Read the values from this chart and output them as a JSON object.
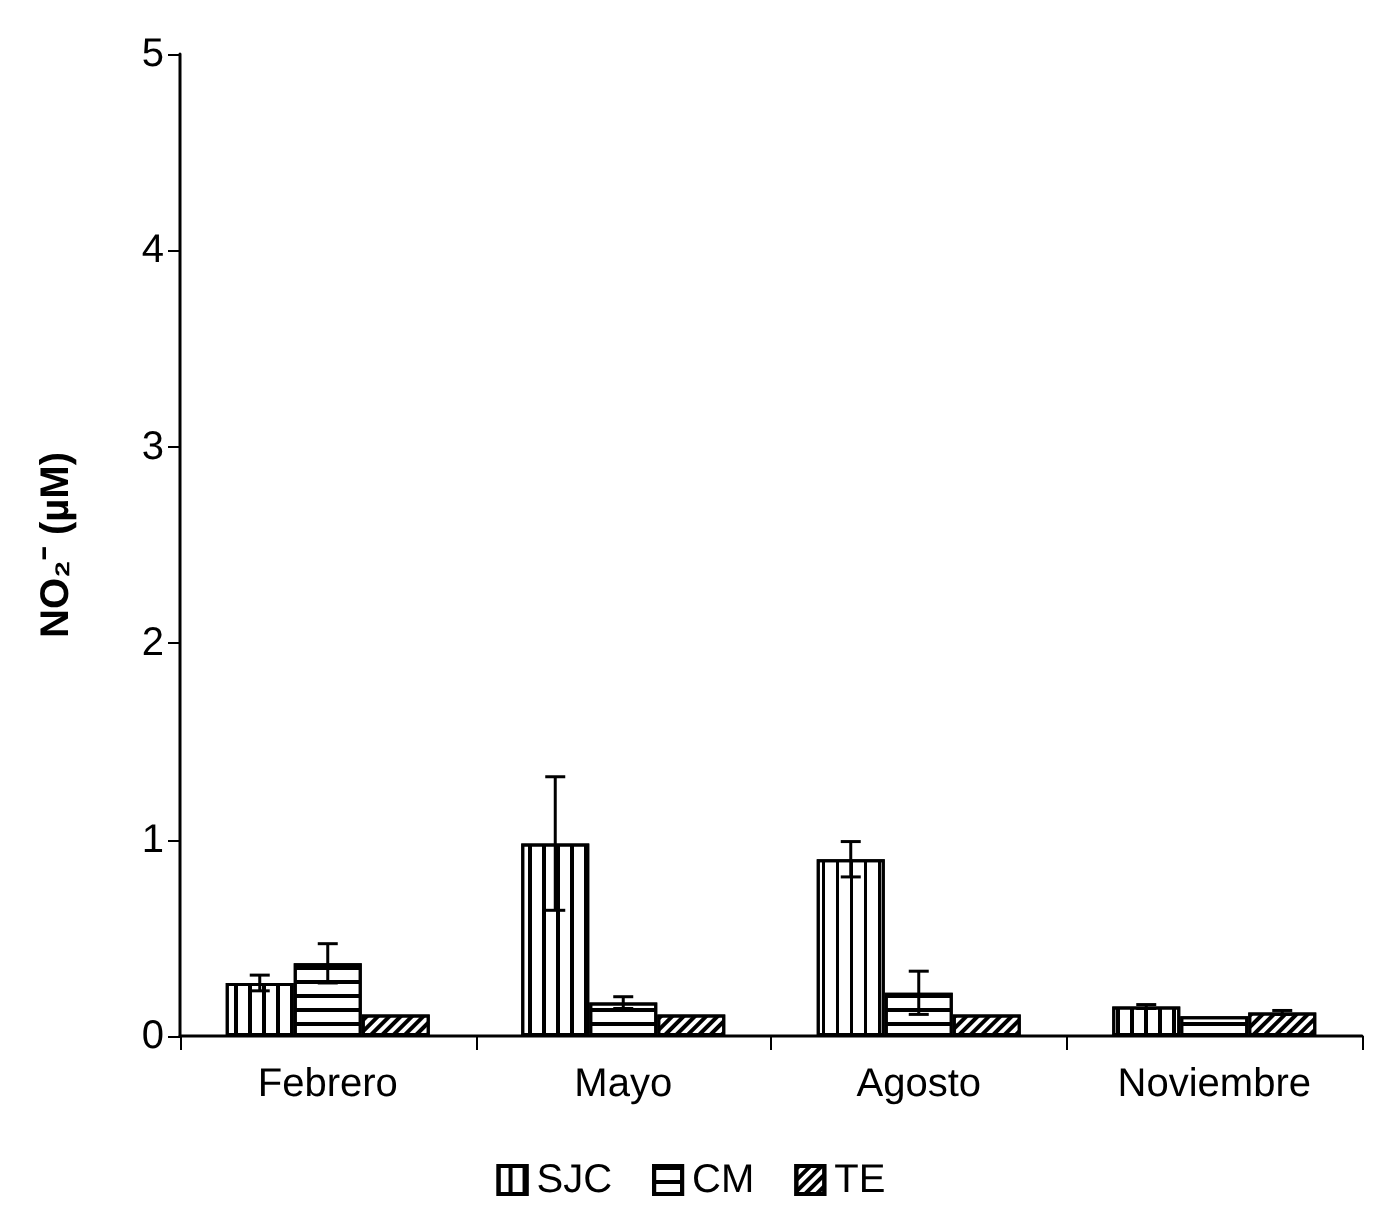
{
  "chart_data": {
    "type": "bar",
    "ylabel": "NO₂⁻ (µM)",
    "categories": [
      "Febrero",
      "Mayo",
      "Agosto",
      "Noviembre"
    ],
    "series": [
      {
        "name": "SJC",
        "color": "#ffffff",
        "values": [
          0.27,
          0.98,
          0.9,
          0.15
        ],
        "errors": [
          0.04,
          0.34,
          0.09,
          0.01
        ]
      },
      {
        "name": "CM",
        "color": "#ffffff",
        "values": [
          0.37,
          0.17,
          0.22,
          0.1
        ],
        "errors": [
          0.1,
          0.03,
          0.11,
          null
        ]
      },
      {
        "name": "TE",
        "color": "#ffffff",
        "values": [
          0.11,
          0.11,
          0.11,
          0.12
        ],
        "errors": [
          null,
          null,
          null,
          0.01
        ]
      }
    ],
    "ylim": [
      0,
      5
    ],
    "yticks": [
      0,
      1,
      2,
      3,
      4,
      5
    ],
    "grid": false,
    "legend": "bottom"
  }
}
